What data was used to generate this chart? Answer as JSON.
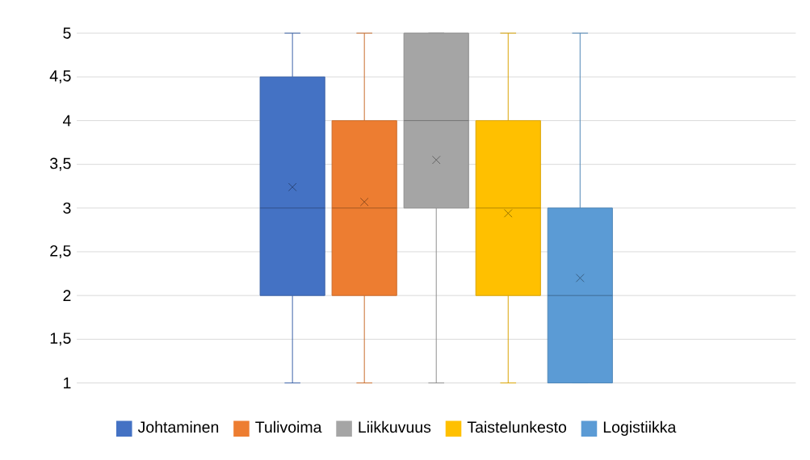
{
  "chart_data": {
    "type": "box",
    "categories": [
      null
    ],
    "ylim": [
      1,
      5
    ],
    "yticks": [
      1,
      {
        "value": 1.5,
        "label": "1,5"
      },
      2,
      {
        "value": 2.5,
        "label": "2,5"
      },
      3,
      {
        "value": 3.5,
        "label": "3,5"
      },
      4,
      {
        "value": 4.5,
        "label": "4,5"
      },
      5
    ],
    "grid": "y",
    "legend": "bottom",
    "marker": "cross",
    "series": [
      {
        "name": "Johtaminen",
        "color": "#4472c4",
        "boxes": [
          {
            "low": 1,
            "q1": 2,
            "median": 3,
            "q3": 4.5,
            "high": 5,
            "mean": 3.24
          }
        ]
      },
      {
        "name": "Tulivoima",
        "color": "#ed7d31",
        "boxes": [
          {
            "low": 1,
            "q1": 2,
            "median": 3,
            "q3": 4,
            "high": 5,
            "mean": 3.07
          }
        ]
      },
      {
        "name": "Liikkuvuus",
        "color": "#a5a5a5",
        "boxes": [
          {
            "low": 1,
            "q1": 3,
            "median": 4,
            "q3": 5,
            "high": 5,
            "mean": 3.55
          }
        ]
      },
      {
        "name": "Taistelunkesto",
        "color": "#ffc000",
        "boxes": [
          {
            "low": 1,
            "q1": 2,
            "median": 3,
            "q3": 4,
            "high": 5,
            "mean": 2.94
          }
        ]
      },
      {
        "name": "Logistiikka",
        "color": "#5b9bd5",
        "boxes": [
          {
            "low": 1,
            "q1": 1,
            "median": 2,
            "q3": 3,
            "high": 5,
            "mean": 2.2
          }
        ]
      }
    ]
  }
}
